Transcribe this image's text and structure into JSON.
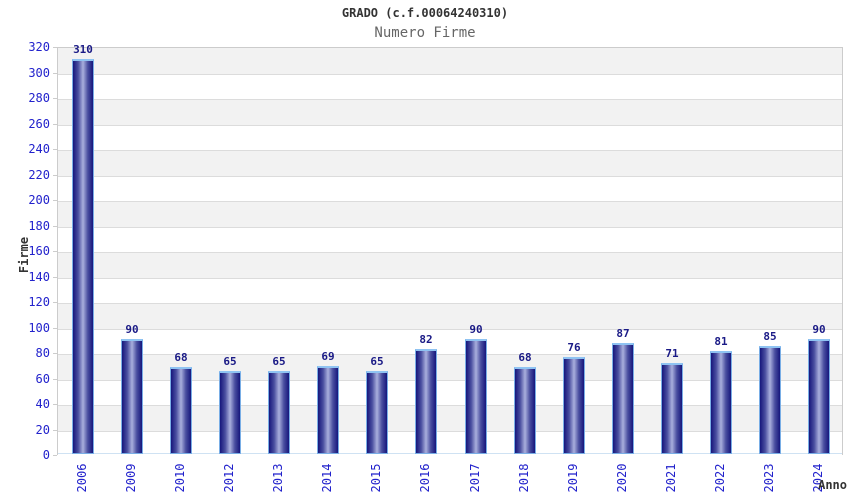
{
  "header": {
    "title": "GRADO (c.f.00064240310)",
    "subtitle": "Numero Firme"
  },
  "chart_data": {
    "type": "bar",
    "title": "GRADO (c.f.00064240310)",
    "subtitle": "Numero Firme",
    "xlabel": "Anno",
    "ylabel": "Firme",
    "categories": [
      "2006",
      "2009",
      "2010",
      "2012",
      "2013",
      "2014",
      "2015",
      "2016",
      "2017",
      "2018",
      "2019",
      "2020",
      "2021",
      "2022",
      "2023",
      "2024"
    ],
    "values": [
      310,
      90,
      68,
      65,
      65,
      69,
      65,
      82,
      90,
      68,
      76,
      87,
      71,
      81,
      85,
      90
    ],
    "ylim": [
      0,
      320
    ],
    "ytick_step": 20,
    "grid": true,
    "legend": "none",
    "colors": {
      "band_gray": "#f2f2f2",
      "band_white": "#ffffff",
      "grid_line": "#dcdcdc",
      "plot_border": "#cccccc",
      "bar_edge": "#16167c",
      "bar_mid": "#4a4fa0",
      "bar_center": "#a9afdd",
      "bar_stroke": "#79aee6",
      "bar_cap": "#8fc3f2",
      "tick_label": "#2222cc",
      "value_label": "#1a1a86",
      "title_color": "#333333",
      "subtitle_color": "#666666"
    }
  }
}
